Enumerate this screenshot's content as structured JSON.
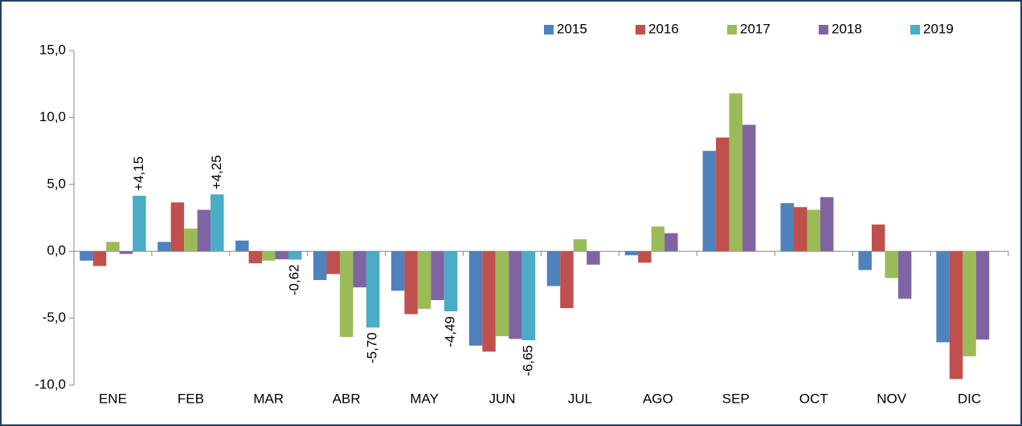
{
  "chart_data": {
    "type": "bar",
    "categories": [
      "ENE",
      "FEB",
      "MAR",
      "ABR",
      "MAY",
      "JUN",
      "JUL",
      "AGO",
      "SEP",
      "OCT",
      "NOV",
      "DIC"
    ],
    "series": [
      {
        "name": "2015",
        "color": "#4f81bd",
        "values": [
          -0.7,
          0.7,
          0.8,
          -2.15,
          -2.95,
          -7.05,
          -2.6,
          -0.3,
          7.5,
          3.6,
          -1.4,
          -6.8
        ]
      },
      {
        "name": "2016",
        "color": "#c0504d",
        "values": [
          -1.1,
          3.65,
          -0.9,
          -1.7,
          -4.7,
          -7.5,
          -4.25,
          -0.85,
          8.5,
          3.3,
          2.0,
          -9.55
        ]
      },
      {
        "name": "2017",
        "color": "#9bbb59",
        "values": [
          0.7,
          1.7,
          -0.7,
          -6.4,
          -4.3,
          -6.35,
          0.9,
          1.85,
          11.8,
          3.1,
          -2.0,
          -7.85
        ]
      },
      {
        "name": "2018",
        "color": "#8064a2",
        "values": [
          -0.2,
          3.1,
          -0.6,
          -2.7,
          -3.65,
          -6.55,
          -1.0,
          1.35,
          9.45,
          4.05,
          -3.55,
          -6.6
        ]
      },
      {
        "name": "2019",
        "color": "#4bacc6",
        "values": [
          4.15,
          4.25,
          -0.62,
          -5.7,
          -4.49,
          -6.65,
          null,
          null,
          null,
          null,
          null,
          null
        ],
        "value_labels": [
          "+4,15",
          "+4,25",
          "-0,62",
          "-5,70",
          "-4,49",
          "-6,65",
          null,
          null,
          null,
          null,
          null,
          null
        ]
      }
    ],
    "ylim": [
      -10,
      15
    ],
    "yticks": [
      {
        "value": -10,
        "label": "-10,0"
      },
      {
        "value": -5,
        "label": "-5,0"
      },
      {
        "value": 0,
        "label": "0,0"
      },
      {
        "value": 5,
        "label": "5,0"
      },
      {
        "value": 10,
        "label": "10,0"
      },
      {
        "value": 15,
        "label": "15,0"
      }
    ],
    "grid": false,
    "legend": "top-right"
  }
}
